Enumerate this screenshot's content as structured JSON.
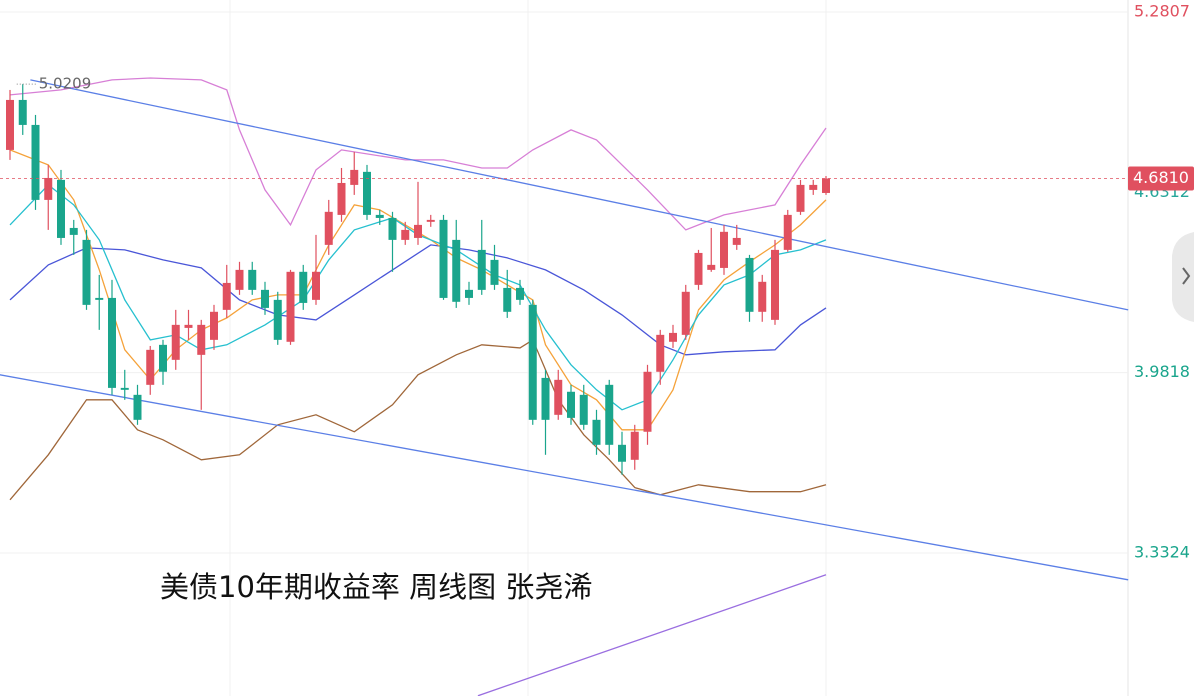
{
  "chart_data": {
    "type": "candlestick",
    "title": "美债10年期收益率 周线图 张尧浠",
    "ylim": [
      2.8174,
      5.3239
    ],
    "xlim": [
      -0.8,
      87.7
    ],
    "yticks": [
      5.2807,
      3.9818,
      3.3324
    ],
    "marker_tick": {
      "value": 4.6312,
      "color": "#26a69a"
    },
    "last_price": {
      "value": 4.681,
      "label": "4.6810",
      "color": "#e0505f"
    },
    "max_annotation": 5.0209,
    "up_color": "#e0505f",
    "down_color": "#1aa58c",
    "open": [
      4.784,
      4.964,
      4.874,
      4.604,
      4.676,
      4.503,
      4.46,
      4.251,
      4.251,
      3.927,
      3.902,
      3.938,
      4.082,
      4.028,
      4.143,
      4.046,
      4.1,
      4.208,
      4.28,
      4.352,
      4.28,
      4.244,
      4.093,
      4.345,
      4.244,
      4.442,
      4.55,
      4.658,
      4.705,
      4.55,
      4.539,
      4.46,
      4.467,
      4.525,
      4.532,
      4.46,
      4.28,
      4.424,
      4.388,
      4.287,
      4.287,
      4.226,
      3.963,
      3.83,
      3.913,
      3.902,
      3.812,
      3.938,
      3.722,
      3.668,
      3.769,
      3.985,
      4.093,
      4.118,
      4.298,
      4.352,
      4.359,
      4.442,
      4.395,
      4.201,
      4.172,
      4.424,
      4.561,
      4.64,
      4.629
    ],
    "high": [
      5.0,
      5.0209,
      4.91,
      4.73,
      4.712,
      4.532,
      4.496,
      4.334,
      4.316,
      3.992,
      3.938,
      4.078,
      4.1,
      4.208,
      4.208,
      4.172,
      4.226,
      4.37,
      4.381,
      4.381,
      4.309,
      4.273,
      4.352,
      4.37,
      4.478,
      4.604,
      4.719,
      4.777,
      4.73,
      4.568,
      4.561,
      4.525,
      4.669,
      4.55,
      4.55,
      4.532,
      4.309,
      4.532,
      4.442,
      4.352,
      4.316,
      4.244,
      3.992,
      3.992,
      3.938,
      3.938,
      3.848,
      3.956,
      3.769,
      3.794,
      4.01,
      4.136,
      4.154,
      4.298,
      4.424,
      4.503,
      4.514,
      4.514,
      4.406,
      4.334,
      4.46,
      4.568,
      4.676,
      4.676,
      4.69
    ],
    "low": [
      4.748,
      4.838,
      4.568,
      4.496,
      4.442,
      4.406,
      4.208,
      4.136,
      3.902,
      3.884,
      3.794,
      3.902,
      3.938,
      3.992,
      4.1,
      3.848,
      4.064,
      4.179,
      4.262,
      4.262,
      4.19,
      4.082,
      4.082,
      4.208,
      4.226,
      4.406,
      4.525,
      4.622,
      4.532,
      4.514,
      4.345,
      4.442,
      4.442,
      4.507,
      4.244,
      4.215,
      4.226,
      4.262,
      4.28,
      4.179,
      4.226,
      3.794,
      3.686,
      3.812,
      3.794,
      3.776,
      3.686,
      3.686,
      3.614,
      3.632,
      3.722,
      3.938,
      4.071,
      4.1,
      4.28,
      4.345,
      4.334,
      4.424,
      4.165,
      4.165,
      4.154,
      4.417,
      4.55,
      4.622,
      4.622
    ],
    "close": [
      4.964,
      4.874,
      4.604,
      4.683,
      4.467,
      4.478,
      4.226,
      4.244,
      3.927,
      3.92,
      3.812,
      4.064,
      3.985,
      4.154,
      4.154,
      4.154,
      4.201,
      4.305,
      4.352,
      4.28,
      4.215,
      4.1,
      4.345,
      4.233,
      4.345,
      4.561,
      4.665,
      4.712,
      4.55,
      4.539,
      4.46,
      4.496,
      4.514,
      4.532,
      4.251,
      4.237,
      4.251,
      4.28,
      4.298,
      4.201,
      4.244,
      3.812,
      3.812,
      3.956,
      3.819,
      3.794,
      3.722,
      3.722,
      3.661,
      3.769,
      3.985,
      4.118,
      4.125,
      4.273,
      4.413,
      4.37,
      4.489,
      4.467,
      4.201,
      4.309,
      4.424,
      4.55,
      4.658,
      4.658,
      4.681
    ],
    "series": [
      {
        "color": "#d77fd6",
        "x": [
          0,
          4,
          8,
          11,
          15,
          17,
          18,
          20,
          22,
          24,
          26,
          31,
          34,
          37,
          39,
          41,
          44,
          46,
          50,
          53,
          56,
          60,
          62,
          64
        ],
        "values": [
          4.982,
          5.0,
          5.036,
          5.043,
          5.036,
          5.0,
          4.856,
          4.64,
          4.514,
          4.712,
          4.784,
          4.748,
          4.748,
          4.719,
          4.719,
          4.784,
          4.856,
          4.82,
          4.64,
          4.496,
          4.55,
          4.586,
          4.73,
          4.863
        ]
      },
      {
        "color": "#4a56d8",
        "x": [
          0,
          3,
          6,
          9,
          12,
          15,
          18,
          21,
          24,
          27,
          30,
          33,
          36,
          39,
          42,
          45,
          48,
          51,
          53,
          56,
          60,
          62,
          64
        ],
        "values": [
          4.244,
          4.37,
          4.431,
          4.424,
          4.388,
          4.359,
          4.244,
          4.19,
          4.172,
          4.262,
          4.352,
          4.442,
          4.424,
          4.395,
          4.352,
          4.28,
          4.19,
          4.082,
          4.046,
          4.057,
          4.064,
          4.154,
          4.215
        ]
      },
      {
        "color": "#a0673a",
        "x": [
          0,
          3,
          6,
          8,
          10,
          12,
          15,
          18,
          21,
          24,
          27,
          30,
          32,
          35,
          37,
          40,
          41,
          43,
          45,
          47,
          49,
          51,
          54,
          58,
          62,
          64
        ],
        "values": [
          3.524,
          3.686,
          3.884,
          3.884,
          3.776,
          3.74,
          3.668,
          3.686,
          3.794,
          3.83,
          3.769,
          3.866,
          3.974,
          4.046,
          4.082,
          4.071,
          4.1,
          3.884,
          3.758,
          3.668,
          3.568,
          3.542,
          3.578,
          3.553,
          3.553,
          3.578
        ]
      },
      {
        "color": "#f5a23a",
        "x": [
          0,
          3,
          5,
          7,
          9,
          11,
          13,
          15,
          17,
          19,
          21,
          23,
          25,
          27,
          29,
          31,
          33,
          35,
          37,
          39,
          41,
          42,
          44,
          46,
          48,
          50,
          52,
          54,
          56,
          58,
          60,
          62,
          64
        ],
        "values": [
          4.784,
          4.73,
          4.604,
          4.352,
          4.064,
          3.956,
          4.064,
          4.136,
          4.179,
          4.244,
          4.262,
          4.262,
          4.442,
          4.586,
          4.568,
          4.514,
          4.46,
          4.395,
          4.352,
          4.298,
          4.244,
          4.082,
          3.938,
          3.884,
          3.776,
          3.776,
          3.92,
          4.208,
          4.316,
          4.381,
          4.442,
          4.514,
          4.604
        ]
      },
      {
        "color": "#26c0cf",
        "x": [
          0,
          3,
          5,
          7,
          9,
          11,
          13,
          15,
          17,
          20,
          23,
          25,
          27,
          30,
          32,
          35,
          38,
          40,
          42,
          44,
          46,
          48,
          50,
          52,
          54,
          56,
          58,
          60,
          62,
          64
        ],
        "values": [
          4.514,
          4.658,
          4.586,
          4.46,
          4.244,
          4.1,
          4.118,
          4.064,
          4.082,
          4.154,
          4.244,
          4.388,
          4.496,
          4.539,
          4.478,
          4.424,
          4.334,
          4.298,
          4.136,
          4.01,
          3.92,
          3.848,
          3.884,
          4.028,
          4.19,
          4.298,
          4.334,
          4.406,
          4.424,
          4.46
        ]
      },
      {
        "color": "#5b7fe6",
        "x": [
          1.6,
          87.7
        ],
        "values": [
          5.036,
          4.208
        ]
      },
      {
        "color": "#5b7fe6",
        "x": [
          -0.8,
          87.7
        ],
        "values": [
          3.974,
          3.236
        ]
      },
      {
        "color": "#9a6ee0",
        "x": [
          36.7,
          64
        ],
        "values": [
          2.818,
          3.254
        ]
      }
    ]
  }
}
